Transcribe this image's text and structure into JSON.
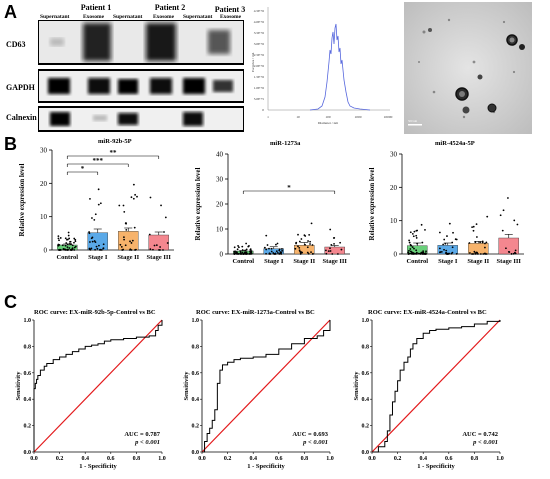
{
  "panels": {
    "a": "A",
    "b": "B",
    "c": "C"
  },
  "western_blot": {
    "patients": [
      "Patient 1",
      "Patient 2",
      "Patient 3"
    ],
    "lanes": [
      "Supernatant",
      "Exosome",
      "Supernatant",
      "Exosome",
      "Supernatant",
      "Exosome"
    ],
    "proteins": [
      "CD63",
      "GAPDH",
      "Calnexin"
    ]
  },
  "nta": {
    "xlabel": "Diameter / nm",
    "ylabel": "Particles / mL",
    "yticks": [
      "0",
      "5.0E+5",
      "1.0E+6",
      "1.5E+6",
      "2.0E+6",
      "2.5E+6",
      "3.0E+6",
      "3.5E+6",
      "4.0E+6",
      "4.5E+6"
    ],
    "xticks": [
      "1",
      "10",
      "100",
      "1000",
      "10000"
    ]
  },
  "tem": {
    "scale": "500 nm"
  },
  "colors": {
    "control": "#69d07a",
    "stage1": "#5aa9e8",
    "stage2": "#f7b36b",
    "stage3": "#f4878f",
    "roc_line": "#e31a1c"
  },
  "chart_data": [
    {
      "type": "bar",
      "title": "miR-92b-5P",
      "ylabel": "Relative expression level",
      "categories": [
        "Control",
        "Stage I",
        "Stage II",
        "Stage III"
      ],
      "values": [
        1.5,
        5.2,
        5.6,
        4.5
      ],
      "sem": [
        0.3,
        1.1,
        1.0,
        0.9
      ],
      "ylim": [
        0,
        30
      ],
      "yticks": [
        0,
        10,
        20,
        30
      ],
      "significance": [
        "*",
        "***",
        "**"
      ]
    },
    {
      "type": "bar",
      "title": "miR-1273a",
      "ylabel": "",
      "categories": [
        "Control",
        "Stage I",
        "Stage II",
        "Stage III"
      ],
      "values": [
        1.2,
        2.1,
        3.5,
        2.8
      ],
      "sem": [
        0.2,
        0.8,
        1.1,
        0.6
      ],
      "ylim": [
        0,
        40
      ],
      "yticks": [
        0,
        10,
        20,
        30,
        40
      ],
      "significance": [
        "*"
      ]
    },
    {
      "type": "bar",
      "title": "miR-4524a-5P",
      "ylabel": "",
      "categories": [
        "Control",
        "Stage I",
        "Stage II",
        "Stage III"
      ],
      "values": [
        2.5,
        2.6,
        3.2,
        4.8
      ],
      "sem": [
        0.8,
        0.7,
        0.6,
        1.1
      ],
      "ylim": [
        0,
        30
      ],
      "yticks": [
        0,
        10,
        20,
        30
      ],
      "significance": []
    },
    {
      "type": "line",
      "title": "ROC curve: EX-miR-92b-5p-Control vs BC",
      "xlabel": "1 - Specificity",
      "ylabel": "Sensitivity",
      "auc": "AUC = 0.787",
      "p": "p < 0.001",
      "xlim": [
        0,
        1
      ],
      "ylim": [
        0,
        1
      ],
      "x": [
        0,
        0,
        0.01,
        0.02,
        0.03,
        0.05,
        0.08,
        0.1,
        0.15,
        0.2,
        0.25,
        0.3,
        0.35,
        0.4,
        0.45,
        0.5,
        0.55,
        0.6,
        0.7,
        0.8,
        0.9,
        0.95,
        0.97,
        1.0
      ],
      "y": [
        0,
        0.48,
        0.52,
        0.55,
        0.58,
        0.62,
        0.65,
        0.67,
        0.7,
        0.72,
        0.74,
        0.76,
        0.78,
        0.8,
        0.81,
        0.82,
        0.84,
        0.85,
        0.86,
        0.87,
        0.88,
        0.92,
        0.96,
        1.0
      ]
    },
    {
      "type": "line",
      "title": "ROC curve: EX-miR-1273a-Control vs BC",
      "xlabel": "1 - Specificity",
      "ylabel": "Sensitivity",
      "auc": "AUC = 0.693",
      "p": "p < 0.001",
      "xlim": [
        0,
        1
      ],
      "ylim": [
        0,
        1
      ],
      "x": [
        0,
        0.02,
        0.04,
        0.06,
        0.08,
        0.1,
        0.12,
        0.14,
        0.16,
        0.2,
        0.25,
        0.3,
        0.4,
        0.5,
        0.6,
        0.7,
        0.8,
        0.9,
        0.95,
        1.0
      ],
      "y": [
        0,
        0.08,
        0.14,
        0.18,
        0.24,
        0.32,
        0.52,
        0.62,
        0.66,
        0.68,
        0.7,
        0.71,
        0.72,
        0.74,
        0.78,
        0.82,
        0.86,
        0.88,
        0.92,
        1.0
      ]
    },
    {
      "type": "line",
      "title": "ROC curve: EX-miR-4524a-Control vs BC",
      "xlabel": "1 - Specificity",
      "ylabel": "Sensitivity",
      "auc": "AUC = 0.742",
      "p": "p < 0.001",
      "xlim": [
        0,
        1
      ],
      "ylim": [
        0,
        1
      ],
      "x": [
        0,
        0.05,
        0.1,
        0.12,
        0.14,
        0.16,
        0.18,
        0.2,
        0.22,
        0.25,
        0.28,
        0.3,
        0.32,
        0.35,
        0.4,
        0.45,
        0.5,
        0.6,
        0.7,
        0.8,
        0.9,
        1.0
      ],
      "y": [
        0,
        0.04,
        0.08,
        0.16,
        0.28,
        0.38,
        0.46,
        0.54,
        0.62,
        0.68,
        0.72,
        0.78,
        0.82,
        0.86,
        0.9,
        0.92,
        0.93,
        0.94,
        0.95,
        0.97,
        0.99,
        1.0
      ]
    }
  ]
}
